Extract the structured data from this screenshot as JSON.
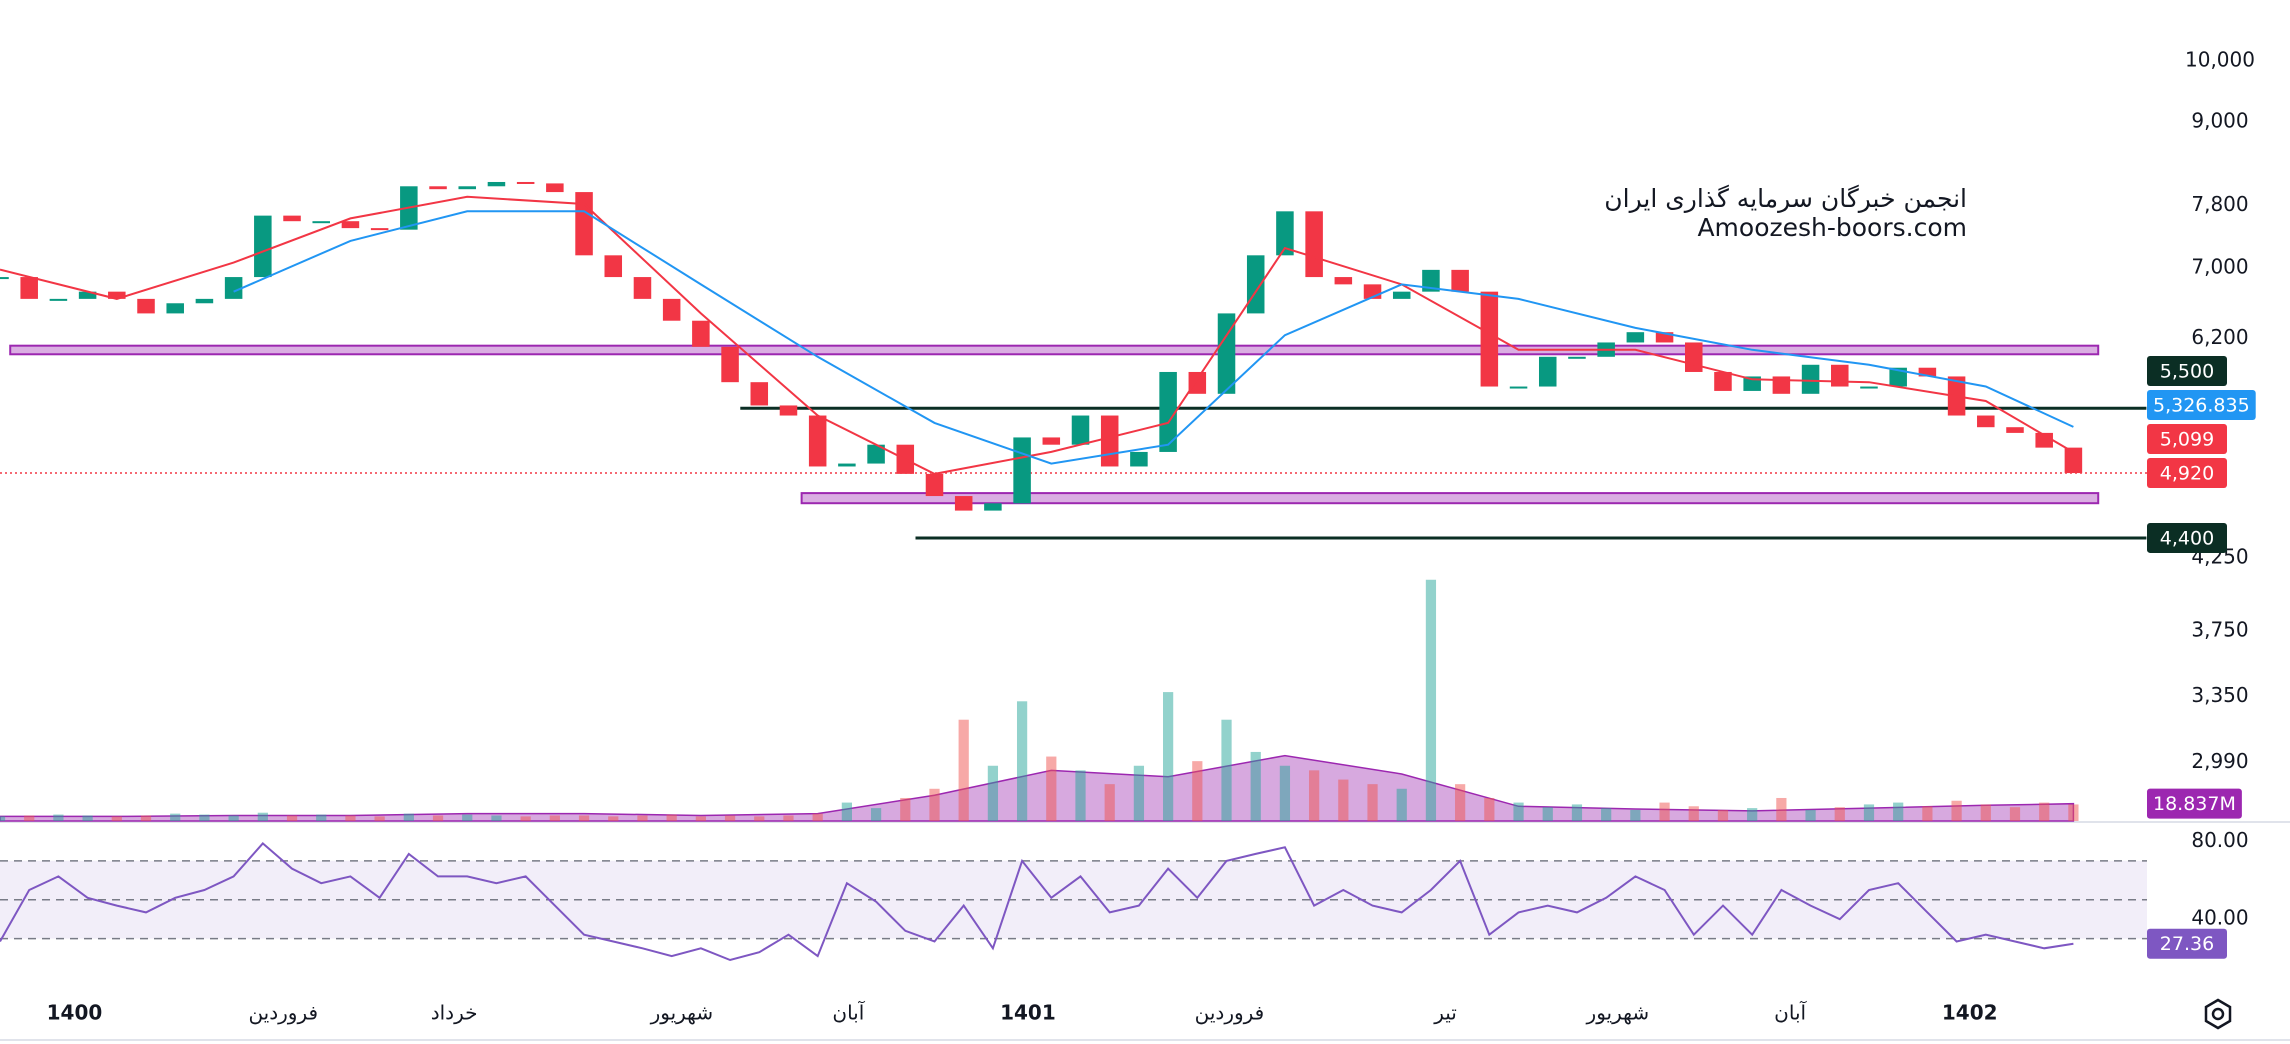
{
  "chart_data": [
    {
      "type": "candlestick",
      "scale": "log",
      "ylim": [
        2703,
        11107
      ],
      "xlim": [
        0,
        71.5
      ],
      "yticks": [
        {
          "value": 10000,
          "label": "10,000"
        },
        {
          "value": 9000,
          "label": "9,000"
        },
        {
          "value": 7800,
          "label": "7,800"
        },
        {
          "value": 7000,
          "label": "7,000"
        },
        {
          "value": 6200,
          "label": "6,200"
        },
        {
          "value": 4250,
          "label": "4,250"
        },
        {
          "value": 3750,
          "label": "3,750"
        },
        {
          "value": 3350,
          "label": "3,350"
        },
        {
          "value": 2990,
          "label": "2,990"
        }
      ],
      "up_color": "#089981",
      "down_color": "#f23645",
      "close": [
        6894,
        6640,
        6640,
        6723,
        6640,
        6476,
        6590,
        6640,
        6894,
        7663,
        7590,
        7590,
        7500,
        7480,
        8060,
        8020,
        8060,
        8120,
        8100,
        7980,
        7157,
        6894,
        6640,
        6395,
        6114,
        5753,
        5527,
        5432,
        4976,
        5001,
        5166,
        4913,
        4729,
        4612,
        4670,
        5231,
        5166,
        5432,
        4976,
        5102,
        5855,
        5639,
        6476,
        7157,
        7720,
        6894,
        6808,
        6640,
        6723,
        6980,
        6723,
        5710,
        5710,
        6010,
        6010,
        6160,
        6270,
        6160,
        5855,
        5667,
        5810,
        5639,
        5928,
        5710,
        5710,
        5898,
        5810,
        5432,
        5324,
        5272,
        5140,
        4920
      ],
      "ma": [
        {
          "color": "#f23645",
          "x": [
            0,
            4,
            8,
            12,
            16,
            20,
            24,
            28,
            32,
            36,
            40,
            44,
            48,
            52,
            56,
            60,
            64,
            68,
            71
          ],
          "values": [
            6983,
            6640,
            7068,
            7626,
            7915,
            7818,
            6476,
            5432,
            4913,
            5102,
            5364,
            7248,
            6808,
            6083,
            6083,
            5782,
            5753,
            5570,
            5099
          ]
        },
        {
          "color": "#2196f3",
          "x": [
            8,
            12,
            16,
            20,
            24,
            28,
            32,
            36,
            40,
            44,
            48,
            52,
            56,
            60,
            64,
            68,
            71
          ],
          "values": [
            6723,
            7337,
            7720,
            7720,
            6808,
            6010,
            5364,
            5001,
            5166,
            6237,
            6808,
            6640,
            6316,
            6083,
            5928,
            5710,
            5326.835
          ]
        }
      ],
      "bands": [
        {
          "low": 6036,
          "high": 6126,
          "x": [
            0.35,
            71.85
          ],
          "color": "#ce93d8"
        },
        {
          "low": 4671,
          "high": 4753,
          "x": [
            27.45,
            71.85
          ],
          "color": "#ce93d8"
        }
      ],
      "lines": [
        {
          "value": 5500,
          "x": [
            25.35,
            73.5
          ],
          "color": "#0b2e24"
        },
        {
          "value": 4400,
          "x": [
            31.35,
            73.5
          ],
          "color": "#0b2e24"
        }
      ],
      "price_tags": [
        {
          "value": 5500,
          "label": "5,500",
          "color": "#0b2e24"
        },
        {
          "value": 5326.835,
          "label": "5,326.835",
          "color": "#2196f3"
        },
        {
          "value": 5099,
          "label": "5,099",
          "color": "#f23645"
        },
        {
          "value": 4920,
          "label": "4,920",
          "color": "#f23645",
          "line": "dotted"
        },
        {
          "value": 4400,
          "label": "4,400",
          "color": "#0b2e24"
        }
      ]
    },
    {
      "type": "bar",
      "ylim": [
        0,
        265
      ],
      "xlim": [
        0,
        71.5
      ],
      "values": [
        5,
        6,
        7,
        6,
        5,
        6,
        8,
        7,
        6,
        9,
        6,
        7,
        6,
        5,
        8,
        6,
        7,
        6,
        5,
        6,
        6,
        5,
        6,
        7,
        5,
        6,
        5,
        6,
        8,
        20,
        14,
        25,
        35,
        110,
        60,
        130,
        70,
        55,
        40,
        60,
        140,
        65,
        110,
        75,
        60,
        55,
        45,
        40,
        35,
        262,
        40,
        25,
        20,
        15,
        18,
        14,
        12,
        20,
        16,
        12,
        14,
        25,
        12,
        15,
        18,
        20,
        16,
        22,
        18,
        15,
        20,
        18
      ],
      "ma": {
        "color": "#9c27b0",
        "x": [
          0,
          4,
          8,
          12,
          16,
          20,
          24,
          28,
          32,
          36,
          40,
          44,
          48,
          52,
          56,
          60,
          64,
          68,
          71
        ],
        "values": [
          5,
          5,
          6,
          6,
          8,
          8,
          6,
          8,
          28,
          55,
          48,
          71,
          51,
          16,
          13,
          11,
          14,
          17,
          18.837
        ]
      },
      "price_tag": {
        "value": 18.837,
        "label": "18.837M",
        "color": "#9c27b0"
      }
    },
    {
      "type": "line",
      "ylim": [
        2,
        90
      ],
      "xlim": [
        0,
        71.5
      ],
      "color": "#7e57c2",
      "yticks": [
        {
          "value": 80,
          "label": "80.00"
        },
        {
          "value": 40,
          "label": "40.00"
        }
      ],
      "levels": [
        70,
        50,
        30
      ],
      "values": [
        28.5,
        55,
        62,
        51,
        47,
        43.5,
        51,
        55,
        62,
        79,
        66,
        58.5,
        62,
        51,
        73.6,
        62,
        62,
        58.5,
        62,
        47,
        32,
        28.5,
        25,
        21,
        25,
        19,
        23,
        32,
        21,
        58.5,
        49,
        34,
        28.5,
        47,
        25,
        70,
        51,
        62,
        43.5,
        47,
        66,
        51,
        70,
        73.6,
        77,
        47,
        55,
        47,
        43.5,
        55,
        70,
        32,
        43.5,
        47,
        43.5,
        51,
        62,
        55,
        32,
        47,
        32,
        55,
        47,
        40,
        55,
        58.5,
        43.5,
        28.5,
        32,
        28.5,
        25,
        27.36
      ],
      "price_tag": {
        "value": 27.36,
        "label": "27.36",
        "color": "#7e57c2"
      },
      "xticks": [
        {
          "value": 2.55,
          "label": "1400"
        },
        {
          "value": 9.7,
          "label": "فروردین"
        },
        {
          "value": 15.55,
          "label": "خرداد"
        },
        {
          "value": 23.35,
          "label": "شهریور"
        },
        {
          "value": 29.05,
          "label": "آبان"
        },
        {
          "value": 35.2,
          "label": "1401"
        },
        {
          "value": 42.1,
          "label": "فروردین"
        },
        {
          "value": 49.5,
          "label": "تیر"
        },
        {
          "value": 55.4,
          "label": "شهریور"
        },
        {
          "value": 61.3,
          "label": "آبان"
        },
        {
          "value": 67.45,
          "label": "1402"
        }
      ]
    }
  ],
  "watermark": {
    "title": "انجمن خبرگان سرمایه گذاری ایران",
    "site": "Amoozesh-boors.com"
  }
}
